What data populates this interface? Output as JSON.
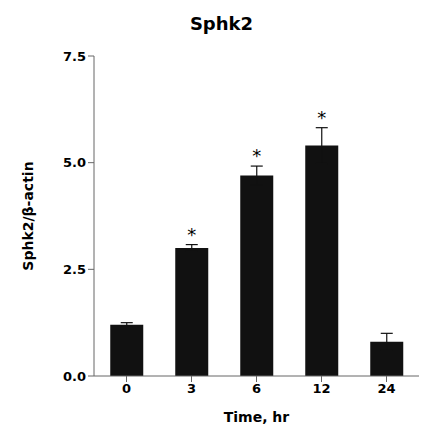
{
  "chart_data": {
    "type": "bar",
    "title": "Sphk2",
    "xlabel": "Time, hr",
    "ylabel": "Sphk2/β-actin",
    "categories": [
      "0",
      "3",
      "6",
      "12",
      "24"
    ],
    "values": [
      1.2,
      3.0,
      4.7,
      5.4,
      0.8
    ],
    "errors": [
      0.05,
      0.08,
      0.22,
      0.42,
      0.2
    ],
    "color": "#111111",
    "ylim": [
      0.0,
      7.5
    ],
    "yticks": [
      {
        "value": 0,
        "label": "0.0"
      },
      2.5,
      {
        "value": 5,
        "label": "5.0"
      },
      7.5
    ],
    "annotations": [
      {
        "category": "3",
        "text": "*"
      },
      {
        "category": "6",
        "text": "*"
      },
      {
        "category": "12",
        "text": "*"
      }
    ],
    "grid": false
  }
}
